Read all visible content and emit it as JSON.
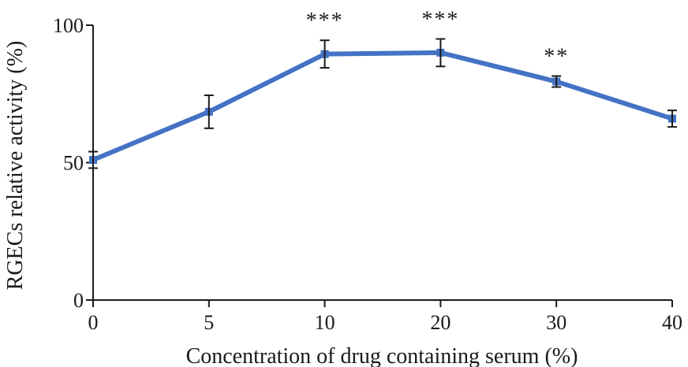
{
  "chart_data": {
    "type": "line",
    "title": "",
    "xlabel": "Concentration of drug containing serum (%)",
    "ylabel": "RGECs relative activity (%)",
    "ylim": [
      0,
      100
    ],
    "yticks": [
      "0",
      "50",
      "100"
    ],
    "categories": [
      "0",
      "5",
      "10",
      "20",
      "30",
      "40"
    ],
    "grid": false,
    "legend": "none",
    "series": [
      {
        "color": "#4472c4",
        "values": [
          51,
          68.5,
          89.5,
          90,
          79.5,
          66
        ],
        "error": [
          3,
          6,
          5,
          5,
          2,
          3
        ]
      }
    ],
    "annotations": [
      "",
      "",
      "***",
      "***",
      "**",
      ""
    ]
  }
}
